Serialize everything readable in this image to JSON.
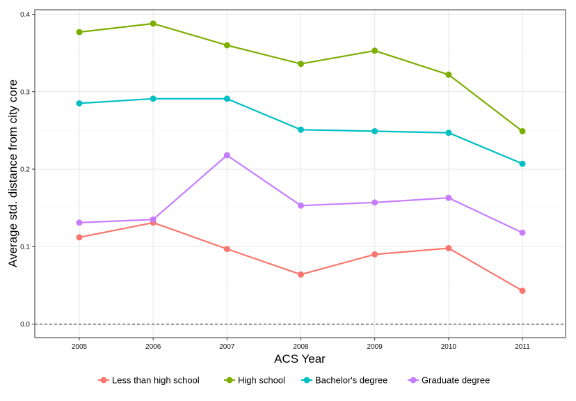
{
  "chart_data": {
    "type": "line",
    "xlabel": "ACS Year",
    "ylabel": "Average std. distance from city core",
    "categories": [
      "2005",
      "2006",
      "2007",
      "2008",
      "2009",
      "2010",
      "2011"
    ],
    "y_ticks": [
      "0.0",
      "0.1",
      "0.2",
      "0.3",
      "0.4"
    ],
    "ylim": [
      -0.02,
      0.405
    ],
    "grid": true,
    "reference_line": {
      "y": 0.0,
      "style": "dashed"
    },
    "legend_position": "bottom",
    "series": [
      {
        "name": "Less than high school",
        "color": "#F8766D",
        "values": [
          0.112,
          0.131,
          0.097,
          0.064,
          0.09,
          0.098,
          0.043
        ]
      },
      {
        "name": "High school",
        "color": "#7CAE00",
        "values": [
          0.377,
          0.388,
          0.36,
          0.336,
          0.353,
          0.322,
          0.249
        ]
      },
      {
        "name": "Bachelor's degree",
        "color": "#00BFC4",
        "values": [
          0.285,
          0.291,
          0.291,
          0.251,
          0.249,
          0.247,
          0.207
        ]
      },
      {
        "name": "Graduate degree",
        "color": "#C77CFF",
        "values": [
          0.131,
          0.135,
          0.218,
          0.153,
          0.157,
          0.163,
          0.118
        ]
      }
    ]
  }
}
